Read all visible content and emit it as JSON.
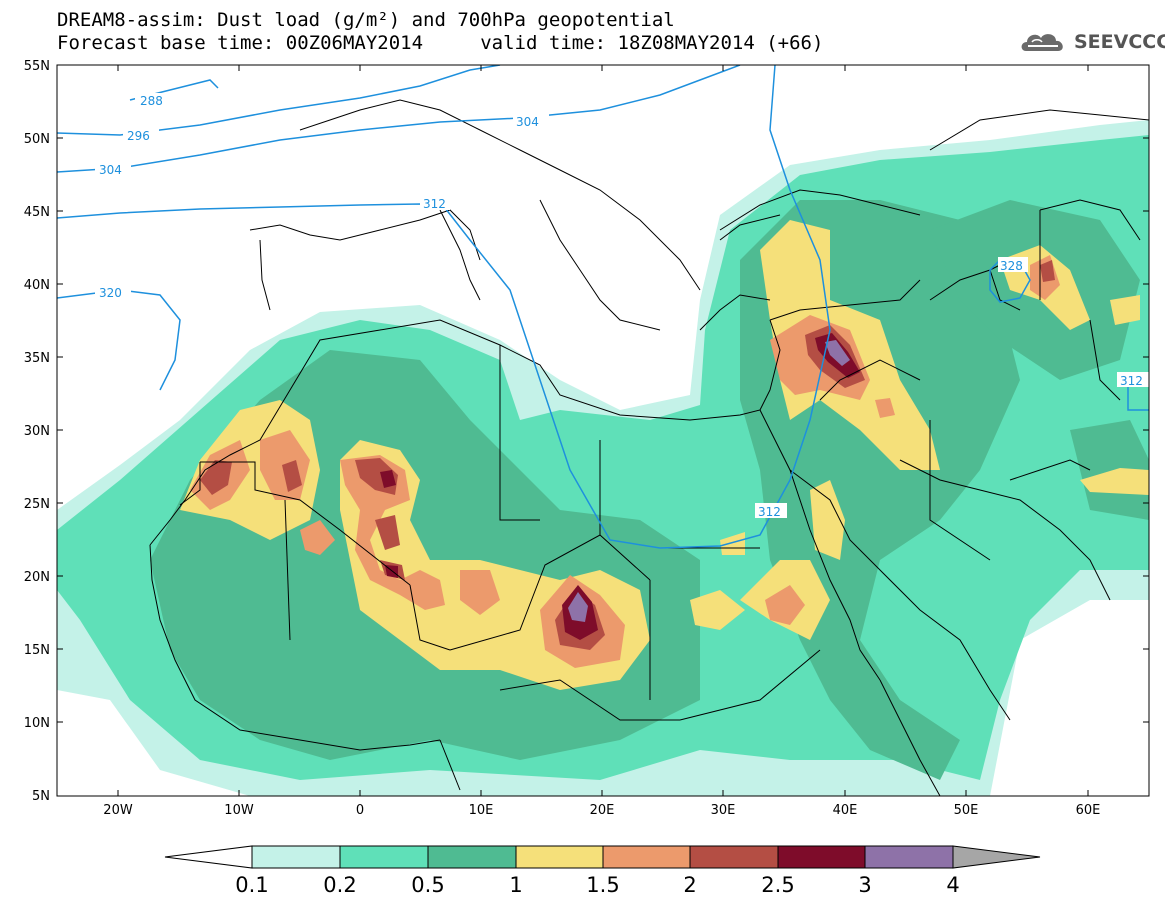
{
  "title": {
    "line1": "DREAM8-assim: Dust load (g/m²) and 700hPa geopotential",
    "line2": "Forecast base time: 00Z06MAY2014     valid time: 18Z08MAY2014 (+66)"
  },
  "logo": {
    "text": "SEEVCCC",
    "icon": "cloud-logo-icon"
  },
  "map": {
    "lon_range": [
      -25,
      65
    ],
    "lat_range": [
      5,
      55
    ],
    "lat_labels": [
      "55N",
      "50N",
      "45N",
      "40N",
      "35N",
      "30N",
      "25N",
      "20N",
      "15N",
      "10N",
      "5N"
    ],
    "lon_labels": [
      "20W",
      "10W",
      "0",
      "10E",
      "20E",
      "30E",
      "40E",
      "50E",
      "60E"
    ],
    "contour_labels": [
      "288",
      "296",
      "304",
      "304",
      "312",
      "320",
      "312",
      "312",
      "328"
    ]
  },
  "colorbar": {
    "labels": [
      "0.1",
      "0.2",
      "0.5",
      "1",
      "1.5",
      "2",
      "2.5",
      "3",
      "4"
    ],
    "colors": [
      "#c4f2e8",
      "#5fe0b8",
      "#4fbb92",
      "#f5e07a",
      "#ec9a6c",
      "#b44e44",
      "#7e0c2a",
      "#8e72a8",
      "#a6a6a6"
    ]
  }
}
